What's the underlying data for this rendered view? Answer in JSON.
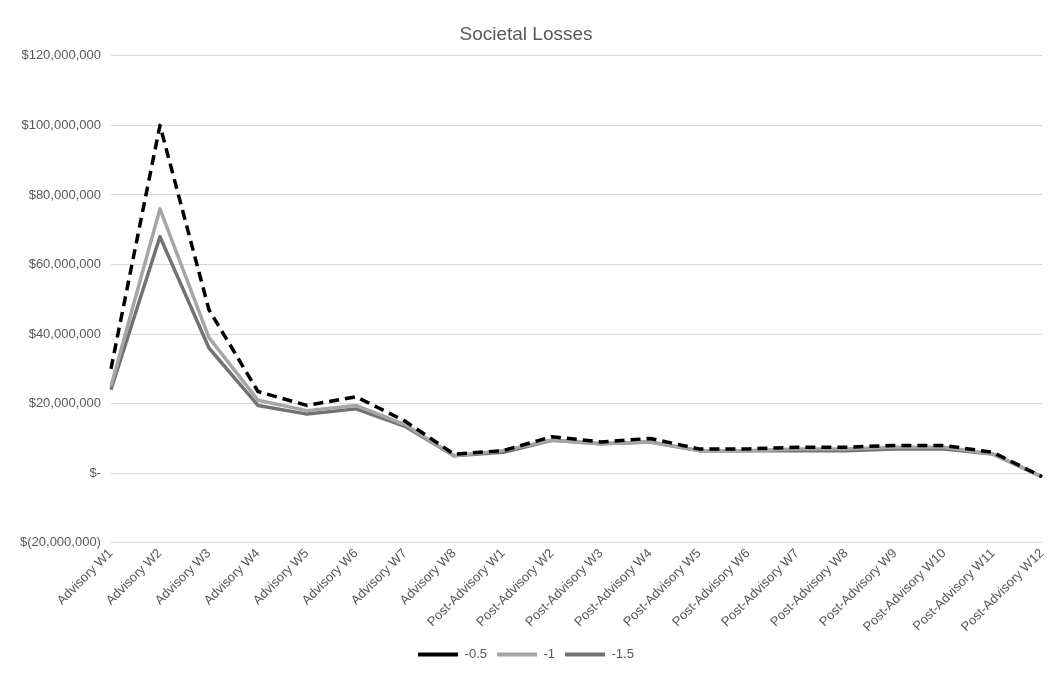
{
  "chart_data": {
    "type": "line",
    "title": "Societal Losses",
    "categories": [
      "Advisory W1",
      "Advisory W2",
      "Advisory W3",
      "Advisory W4",
      "Advisory W5",
      "Advisory W6",
      "Advisory W7",
      "Advisory W8",
      "Post-Advisory W1",
      "Post-Advisory W2",
      "Post-Advisory W3",
      "Post-Advisory W4",
      "Post-Advisory W5",
      "Post-Advisory W6",
      "Post-Advisory W7",
      "Post-Advisory W8",
      "Post-Advisory W9",
      "Post-Advisory W10",
      "Post-Advisory W11",
      "Post-Advisory W12"
    ],
    "series": [
      {
        "name": "-0.5",
        "color": "#000000",
        "line_style": "dashed",
        "values": [
          30000000,
          100000000,
          47000000,
          23500000,
          19500000,
          22000000,
          15000000,
          5500000,
          6500000,
          10500000,
          9000000,
          10000000,
          7000000,
          7000000,
          7500000,
          7500000,
          8000000,
          8000000,
          6000000,
          -1000000
        ]
      },
      {
        "name": "-1",
        "color": "#a6a6a6",
        "line_style": "solid",
        "values": [
          25000000,
          76000000,
          39000000,
          21000000,
          18000000,
          19500000,
          14000000,
          5000000,
          6500000,
          9500000,
          8500000,
          9000000,
          6500000,
          6500000,
          7000000,
          7000000,
          7500000,
          7500000,
          5500000,
          -1000000
        ]
      },
      {
        "name": "-1.5",
        "color": "#767171",
        "line_style": "solid",
        "values": [
          24000000,
          68000000,
          36000000,
          19500000,
          17000000,
          18500000,
          13500000,
          5000000,
          6000000,
          9500000,
          8500000,
          9000000,
          6500000,
          6500000,
          6500000,
          6500000,
          7000000,
          7000000,
          5500000,
          -1000000
        ]
      }
    ],
    "ylim": [
      -20000000,
      120000000
    ],
    "yticks": [
      {
        "value": -20000000,
        "label": "$(20,000,000)"
      },
      {
        "value": 0,
        "label": "$-"
      },
      {
        "value": 20000000,
        "label": "$20,000,000"
      },
      {
        "value": 40000000,
        "label": "$40,000,000"
      },
      {
        "value": 60000000,
        "label": "$60,000,000"
      },
      {
        "value": 80000000,
        "label": "$80,000,000"
      },
      {
        "value": 100000000,
        "label": "$100,000,000"
      },
      {
        "value": 120000000,
        "label": "$120,000,000"
      }
    ],
    "grid": "y",
    "legend": "bottom",
    "marker": "none"
  }
}
